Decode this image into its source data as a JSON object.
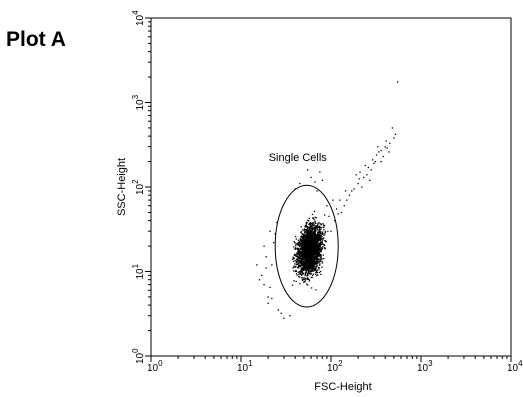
{
  "panel_label": "Plot A",
  "chart_data": {
    "type": "scatter",
    "title": "",
    "xlabel": "FSC-Height",
    "ylabel": "SSC-Height",
    "xscale": "log",
    "yscale": "log",
    "xlim": [
      1,
      10000
    ],
    "ylim": [
      1,
      10000
    ],
    "x_ticks": [
      {
        "base": "10",
        "exp": "0",
        "value": 1
      },
      {
        "base": "10",
        "exp": "1",
        "value": 10
      },
      {
        "base": "10",
        "exp": "2",
        "value": 100
      },
      {
        "base": "10",
        "exp": "3",
        "value": 1000
      },
      {
        "base": "10",
        "exp": "4",
        "value": 10000
      }
    ],
    "y_ticks": [
      {
        "base": "10",
        "exp": "0",
        "value": 1
      },
      {
        "base": "10",
        "exp": "1",
        "value": 10
      },
      {
        "base": "10",
        "exp": "2",
        "value": 100
      },
      {
        "base": "10",
        "exp": "3",
        "value": 1000
      },
      {
        "base": "10",
        "exp": "4",
        "value": 10000
      }
    ],
    "grid": false,
    "marker_color": "#000000",
    "gate": {
      "label": "Single Cells",
      "shape": "ellipse",
      "center": [
        58,
        22
      ],
      "x_range": [
        24,
        120
      ],
      "y_range": [
        3.8,
        105
      ]
    },
    "main_population": {
      "center": [
        58,
        18
      ],
      "log10_spread_x": 0.11,
      "log10_spread_y": 0.25,
      "count": 2600
    },
    "scattered_events": [
      [
        20,
        5
      ],
      [
        18,
        7
      ],
      [
        21,
        6.5
      ],
      [
        17,
        9
      ],
      [
        22,
        12
      ],
      [
        19,
        15
      ],
      [
        23,
        22
      ],
      [
        25,
        38
      ],
      [
        21,
        30
      ],
      [
        16,
        8
      ],
      [
        26,
        3.5
      ],
      [
        28,
        3.2
      ],
      [
        20,
        4.2
      ],
      [
        15,
        12
      ],
      [
        24,
        28
      ],
      [
        22,
        4.8
      ],
      [
        19,
        11
      ],
      [
        30,
        2.8
      ],
      [
        35,
        3
      ],
      [
        18,
        20
      ],
      [
        100,
        30
      ],
      [
        110,
        40
      ],
      [
        130,
        50
      ],
      [
        150,
        70
      ],
      [
        170,
        90
      ],
      [
        200,
        110
      ],
      [
        230,
        130
      ],
      [
        260,
        170
      ],
      [
        290,
        210
      ],
      [
        320,
        240
      ],
      [
        360,
        270
      ],
      [
        400,
        300
      ],
      [
        450,
        330
      ],
      [
        500,
        380
      ],
      [
        520,
        420
      ],
      [
        550,
        1750
      ],
      [
        480,
        500
      ],
      [
        420,
        290
      ],
      [
        300,
        190
      ],
      [
        250,
        140
      ],
      [
        180,
        95
      ],
      [
        140,
        60
      ],
      [
        120,
        48
      ],
      [
        210,
        150
      ],
      [
        340,
        260
      ],
      [
        380,
        230
      ],
      [
        270,
        120
      ],
      [
        160,
        80
      ],
      [
        220,
        100
      ],
      [
        190,
        140
      ],
      [
        145,
        90
      ],
      [
        240,
        180
      ],
      [
        310,
        200
      ],
      [
        330,
        300
      ],
      [
        410,
        350
      ],
      [
        440,
        260
      ],
      [
        360,
        200
      ],
      [
        280,
        160
      ],
      [
        205,
        125
      ],
      [
        125,
        70
      ],
      [
        115,
        55
      ],
      [
        70,
        90
      ],
      [
        80,
        120
      ],
      [
        90,
        60
      ],
      [
        95,
        45
      ],
      [
        60,
        130
      ],
      [
        75,
        150
      ],
      [
        45,
        110
      ],
      [
        55,
        160
      ],
      [
        105,
        70
      ],
      [
        85,
        35
      ],
      [
        40,
        95
      ],
      [
        66,
        115
      ]
    ]
  }
}
